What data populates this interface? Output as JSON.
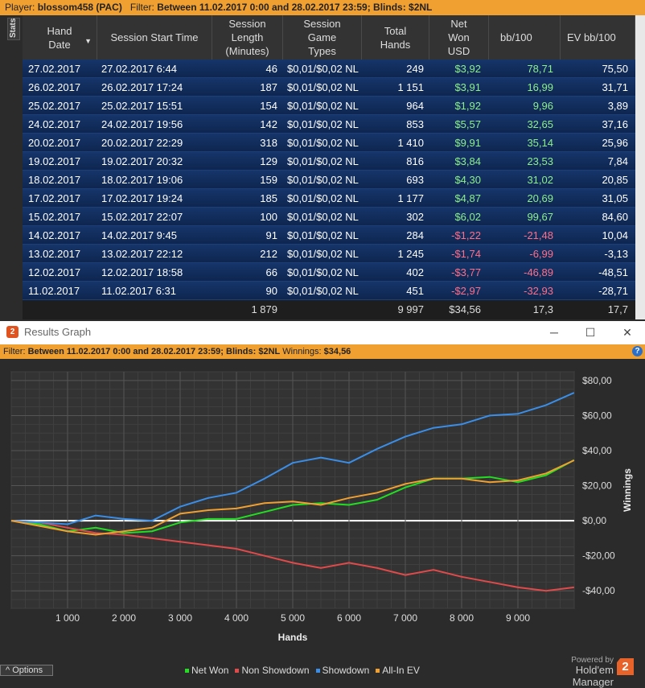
{
  "topbar": {
    "player_label": "Player:",
    "player": "blossom458 (PAC)",
    "filter_label": "Filter:",
    "filter": "Between 11.02.2017 0:00 and 28.02.2017 23:59; Blinds: $2NL"
  },
  "stats_tab": "Stats",
  "table": {
    "headers": [
      "Hand Date",
      "Session Start Time",
      "Session Length (Minutes)",
      "Session Game Types",
      "Total Hands",
      "Net Won USD",
      "bb/100",
      "EV bb/100"
    ],
    "rows": [
      {
        "date": "27.02.2017",
        "start": "27.02.2017 6:44",
        "length": "46",
        "game": "$0,01/$0,02 NL",
        "hands": "249",
        "won": "$3,92",
        "bb": "78,71",
        "ev": "75,50",
        "sign": "pos"
      },
      {
        "date": "26.02.2017",
        "start": "26.02.2017 17:24",
        "length": "187",
        "game": "$0,01/$0,02 NL",
        "hands": "1 151",
        "won": "$3,91",
        "bb": "16,99",
        "ev": "31,71",
        "sign": "pos"
      },
      {
        "date": "25.02.2017",
        "start": "25.02.2017 15:51",
        "length": "154",
        "game": "$0,01/$0,02 NL",
        "hands": "964",
        "won": "$1,92",
        "bb": "9,96",
        "ev": "3,89",
        "sign": "pos"
      },
      {
        "date": "24.02.2017",
        "start": "24.02.2017 19:56",
        "length": "142",
        "game": "$0,01/$0,02 NL",
        "hands": "853",
        "won": "$5,57",
        "bb": "32,65",
        "ev": "37,16",
        "sign": "pos"
      },
      {
        "date": "20.02.2017",
        "start": "20.02.2017 22:29",
        "length": "318",
        "game": "$0,01/$0,02 NL",
        "hands": "1 410",
        "won": "$9,91",
        "bb": "35,14",
        "ev": "25,96",
        "sign": "pos"
      },
      {
        "date": "19.02.2017",
        "start": "19.02.2017 20:32",
        "length": "129",
        "game": "$0,01/$0,02 NL",
        "hands": "816",
        "won": "$3,84",
        "bb": "23,53",
        "ev": "7,84",
        "sign": "pos"
      },
      {
        "date": "18.02.2017",
        "start": "18.02.2017 19:06",
        "length": "159",
        "game": "$0,01/$0,02 NL",
        "hands": "693",
        "won": "$4,30",
        "bb": "31,02",
        "ev": "20,85",
        "sign": "pos"
      },
      {
        "date": "17.02.2017",
        "start": "17.02.2017 19:24",
        "length": "185",
        "game": "$0,01/$0,02 NL",
        "hands": "1 177",
        "won": "$4,87",
        "bb": "20,69",
        "ev": "31,05",
        "sign": "pos"
      },
      {
        "date": "15.02.2017",
        "start": "15.02.2017 22:07",
        "length": "100",
        "game": "$0,01/$0,02 NL",
        "hands": "302",
        "won": "$6,02",
        "bb": "99,67",
        "ev": "84,60",
        "sign": "pos"
      },
      {
        "date": "14.02.2017",
        "start": "14.02.2017 9:45",
        "length": "91",
        "game": "$0,01/$0,02 NL",
        "hands": "284",
        "won": "-$1,22",
        "bb": "-21,48",
        "ev": "10,04",
        "sign": "neg"
      },
      {
        "date": "13.02.2017",
        "start": "13.02.2017 22:12",
        "length": "212",
        "game": "$0,01/$0,02 NL",
        "hands": "1 245",
        "won": "-$1,74",
        "bb": "-6,99",
        "ev": "-3,13",
        "sign": "neg"
      },
      {
        "date": "12.02.2017",
        "start": "12.02.2017 18:58",
        "length": "66",
        "game": "$0,01/$0,02 NL",
        "hands": "402",
        "won": "-$3,77",
        "bb": "-46,89",
        "ev": "-48,51",
        "sign": "neg"
      },
      {
        "date": "11.02.2017",
        "start": "11.02.2017 6:31",
        "length": "90",
        "game": "$0,01/$0,02 NL",
        "hands": "451",
        "won": "-$2,97",
        "bb": "-32,93",
        "ev": "-28,71",
        "sign": "neg"
      }
    ],
    "totals": {
      "length": "1 879",
      "hands": "9 997",
      "won": "$34,56",
      "bb": "17,3",
      "ev": "17,7"
    }
  },
  "graph_window": {
    "title": "Results Graph",
    "app_icon": "2",
    "minimize": "─",
    "maximize": "☐",
    "close": "✕",
    "filter_label": "Filter:",
    "filter": "Between 11.02.2017 0:00 and 28.02.2017 23:59; Blinds: $2NL",
    "winnings_label": "Winnings:",
    "winnings": "$34,56",
    "help": "?"
  },
  "chart_data": {
    "type": "line",
    "xlabel": "Hands",
    "ylabel": "Winnings",
    "xlim": [
      0,
      10000
    ],
    "ylim": [
      -50,
      85
    ],
    "x_ticks": [
      1000,
      2000,
      3000,
      4000,
      5000,
      6000,
      7000,
      8000,
      9000
    ],
    "x_tick_labels": [
      "1 000",
      "2 000",
      "3 000",
      "4 000",
      "5 000",
      "6 000",
      "7 000",
      "8 000",
      "9 000"
    ],
    "y_ticks": [
      80,
      60,
      40,
      20,
      0,
      -20,
      -40
    ],
    "y_tick_labels": [
      "$80,00",
      "$60,00",
      "$40,00",
      "$20,00",
      "$0,00",
      "-$20,00",
      "-$40,00"
    ],
    "grid": true,
    "legend_position": "bottom",
    "x": [
      0,
      500,
      1000,
      1500,
      2000,
      2500,
      3000,
      3500,
      4000,
      4500,
      5000,
      5500,
      6000,
      6500,
      7000,
      7500,
      8000,
      8500,
      9000,
      9500,
      9997
    ],
    "series": [
      {
        "name": "Net Won",
        "color": "#22dd22",
        "values": [
          0,
          -2,
          -6,
          -4,
          -7,
          -6,
          -1,
          1,
          1,
          5,
          9,
          10,
          9,
          12,
          19,
          24,
          24,
          25,
          22,
          26,
          34.56
        ]
      },
      {
        "name": "Non Showdown",
        "color": "#e04a4a",
        "values": [
          0,
          -1,
          -4,
          -7,
          -8,
          -10,
          -12,
          -14,
          -16,
          -20,
          -24,
          -27,
          -24,
          -27,
          -31,
          -28,
          -32,
          -35,
          -38,
          -40,
          -38
        ]
      },
      {
        "name": "Showdown",
        "color": "#3a8ee8",
        "values": [
          0,
          -1,
          -2,
          3,
          1,
          0,
          8,
          13,
          16,
          24,
          33,
          36,
          33,
          41,
          48,
          53,
          55,
          60,
          61,
          66,
          73
        ]
      },
      {
        "name": "All-In EV",
        "color": "#f0a030",
        "values": [
          0,
          -3,
          -6,
          -8,
          -6,
          -4,
          4,
          6,
          7,
          10,
          11,
          9,
          13,
          16,
          21,
          24,
          24,
          22,
          23,
          27,
          34.5
        ]
      }
    ]
  },
  "options_button": "Options",
  "powered_by": "Powered by",
  "brand": "Hold'em Manager",
  "brand_logo": "2"
}
